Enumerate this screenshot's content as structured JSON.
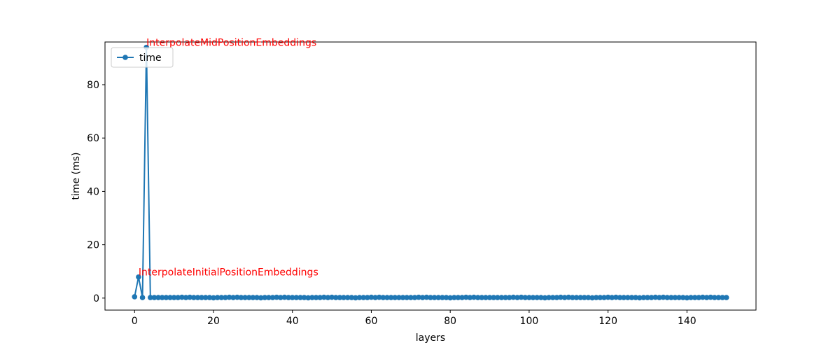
{
  "chart_data": {
    "type": "line",
    "xlabel": "layers",
    "ylabel": "time (ms)",
    "xlim": [
      -7.5,
      157.5
    ],
    "ylim": [
      -4.5,
      96
    ],
    "xticks": [
      0,
      20,
      40,
      60,
      80,
      100,
      120,
      140
    ],
    "yticks": [
      0,
      20,
      40,
      60,
      80
    ],
    "grid": false,
    "legend_position": "top-left",
    "colors": {
      "series": "#1f77b4",
      "annotation": "#ff0000"
    },
    "series": [
      {
        "name": "time",
        "x_start": 0,
        "values": [
          0.5,
          7.9,
          0.2,
          94.0,
          0.2,
          0.2,
          0.2,
          0.2,
          0.2,
          0.2,
          0.2,
          0.2,
          0.3,
          0.2,
          0.3,
          0.2,
          0.2,
          0.2,
          0.2,
          0.2,
          0.1,
          0.2,
          0.2,
          0.2,
          0.3,
          0.2,
          0.3,
          0.2,
          0.2,
          0.2,
          0.2,
          0.2,
          0.1,
          0.2,
          0.2,
          0.2,
          0.3,
          0.2,
          0.3,
          0.2,
          0.2,
          0.2,
          0.2,
          0.2,
          0.1,
          0.2,
          0.2,
          0.2,
          0.3,
          0.2,
          0.3,
          0.2,
          0.2,
          0.2,
          0.2,
          0.2,
          0.1,
          0.2,
          0.2,
          0.2,
          0.3,
          0.2,
          0.3,
          0.2,
          0.2,
          0.2,
          0.2,
          0.2,
          0.2,
          0.2,
          0.2,
          0.2,
          0.3,
          0.2,
          0.3,
          0.2,
          0.2,
          0.2,
          0.2,
          0.2,
          0.1,
          0.2,
          0.2,
          0.2,
          0.3,
          0.2,
          0.3,
          0.2,
          0.2,
          0.2,
          0.2,
          0.2,
          0.2,
          0.2,
          0.2,
          0.2,
          0.3,
          0.2,
          0.3,
          0.2,
          0.2,
          0.2,
          0.2,
          0.2,
          0.1,
          0.2,
          0.2,
          0.2,
          0.3,
          0.2,
          0.3,
          0.2,
          0.2,
          0.2,
          0.2,
          0.2,
          0.1,
          0.2,
          0.2,
          0.2,
          0.3,
          0.2,
          0.3,
          0.2,
          0.2,
          0.2,
          0.2,
          0.2,
          0.1,
          0.2,
          0.2,
          0.2,
          0.3,
          0.2,
          0.3,
          0.2,
          0.2,
          0.2,
          0.2,
          0.2,
          0.1,
          0.2,
          0.2,
          0.2,
          0.3,
          0.2,
          0.3,
          0.2,
          0.2,
          0.2,
          0.2
        ]
      }
    ],
    "annotations": [
      {
        "text": "InterpolateInitialPositionEmbeddings",
        "x": 1,
        "y": 7.9
      },
      {
        "text": "InterpolateMidPositionEmbeddings",
        "x": 3,
        "y": 94.0
      }
    ]
  }
}
